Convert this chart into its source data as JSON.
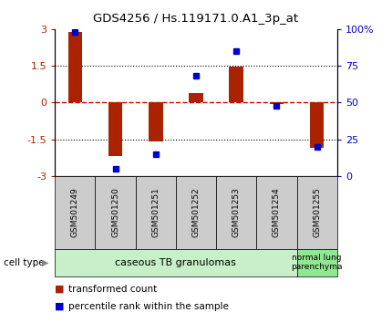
{
  "title": "GDS4256 / Hs.119171.0.A1_3p_at",
  "samples": [
    "GSM501249",
    "GSM501250",
    "GSM501251",
    "GSM501252",
    "GSM501253",
    "GSM501254",
    "GSM501255"
  ],
  "transformed_count": [
    2.9,
    -2.2,
    -1.6,
    0.4,
    1.45,
    -0.05,
    -1.85
  ],
  "percentile_rank": [
    98,
    5,
    15,
    68,
    85,
    48,
    20
  ],
  "ylim_left": [
    -3,
    3
  ],
  "ylim_right": [
    0,
    100
  ],
  "yticks_left": [
    -3,
    -1.5,
    0,
    1.5,
    3
  ],
  "ytick_labels_left": [
    "-3",
    "-1.5",
    "0",
    "1.5",
    "3"
  ],
  "yticks_right": [
    0,
    25,
    50,
    75,
    100
  ],
  "ytick_labels_right": [
    "0",
    "25",
    "50",
    "75",
    "100%"
  ],
  "hlines_dotted": [
    -1.5,
    1.5
  ],
  "hline_dashed": 0,
  "bar_color": "#aa2200",
  "dot_color": "#0000cc",
  "dashed_line_color": "#cc0000",
  "n_group1": 6,
  "group1_label": "caseous TB granulomas",
  "group2_label": "normal lung\nparenchyma",
  "cell_type_label": "cell type",
  "legend_bar_label": "transformed count",
  "legend_dot_label": "percentile rank within the sample",
  "bg_color_plot": "#ffffff",
  "bg_color_xtick": "#cccccc",
  "bg_color_group1": "#c8f0c8",
  "bg_color_group2": "#90e890",
  "bar_width": 0.35
}
